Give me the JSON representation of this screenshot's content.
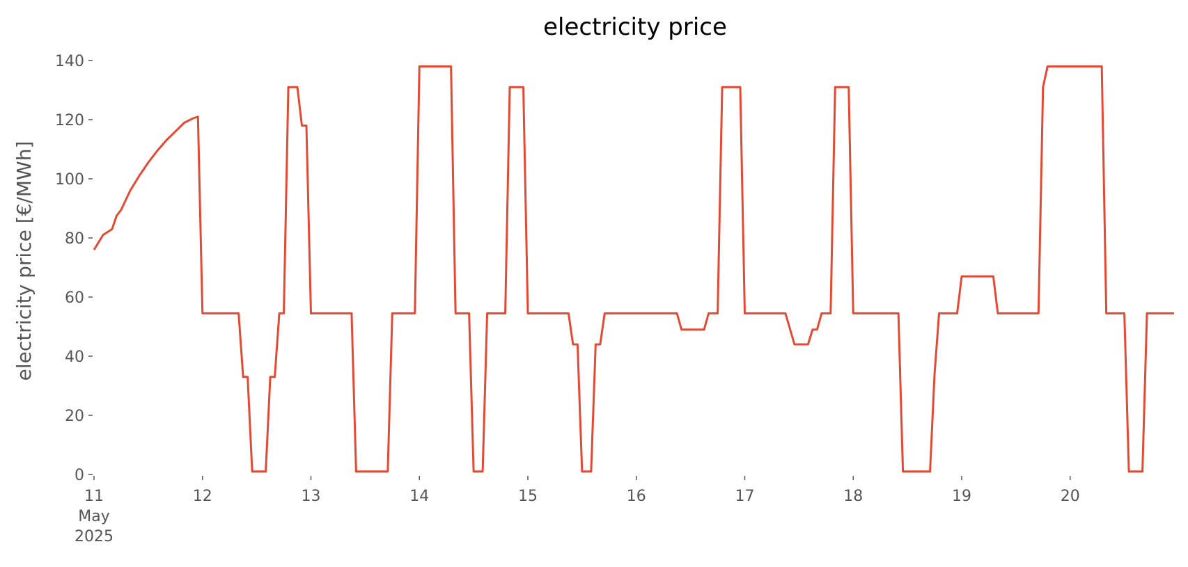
{
  "chart_data": {
    "type": "line",
    "title": "electricity price",
    "ylabel": "electricity price [€/MWh]",
    "x": [
      "2025-05-11T00:00",
      "2025-05-11T01:00",
      "2025-05-11T02:00",
      "2025-05-11T04:00",
      "2025-05-11T05:00",
      "2025-05-11T06:00",
      "2025-05-11T08:00",
      "2025-05-11T10:00",
      "2025-05-11T12:00",
      "2025-05-11T14:00",
      "2025-05-11T16:00",
      "2025-05-11T18:00",
      "2025-05-11T20:00",
      "2025-05-11T22:00",
      "2025-05-11T23:00",
      "2025-05-12T00:00",
      "2025-05-12T08:00",
      "2025-05-12T09:00",
      "2025-05-12T10:00",
      "2025-05-12T11:00",
      "2025-05-12T14:00",
      "2025-05-12T15:00",
      "2025-05-12T16:00",
      "2025-05-12T17:00",
      "2025-05-12T18:00",
      "2025-05-12T19:00",
      "2025-05-12T21:00",
      "2025-05-12T22:00",
      "2025-05-12T23:00",
      "2025-05-13T00:00",
      "2025-05-13T09:00",
      "2025-05-13T10:00",
      "2025-05-13T17:00",
      "2025-05-13T18:00",
      "2025-05-13T23:00",
      "2025-05-14T00:00",
      "2025-05-14T07:00",
      "2025-05-14T08:00",
      "2025-05-14T11:00",
      "2025-05-14T12:00",
      "2025-05-14T14:00",
      "2025-05-14T15:00",
      "2025-05-14T19:00",
      "2025-05-14T20:00",
      "2025-05-14T23:00",
      "2025-05-15T00:00",
      "2025-05-15T09:00",
      "2025-05-15T10:00",
      "2025-05-15T11:00",
      "2025-05-15T12:00",
      "2025-05-15T14:00",
      "2025-05-15T15:00",
      "2025-05-15T16:00",
      "2025-05-15T17:00",
      "2025-05-16T09:00",
      "2025-05-16T10:00",
      "2025-05-16T15:00",
      "2025-05-16T16:00",
      "2025-05-16T18:00",
      "2025-05-16T19:00",
      "2025-05-16T23:00",
      "2025-05-17T00:00",
      "2025-05-17T09:00",
      "2025-05-17T11:00",
      "2025-05-17T14:00",
      "2025-05-17T15:00",
      "2025-05-17T16:00",
      "2025-05-17T17:00",
      "2025-05-17T19:00",
      "2025-05-17T20:00",
      "2025-05-17T23:00",
      "2025-05-18T00:00",
      "2025-05-18T10:00",
      "2025-05-18T11:00",
      "2025-05-18T17:00",
      "2025-05-18T18:00",
      "2025-05-18T19:00",
      "2025-05-18T23:00",
      "2025-05-19T00:00",
      "2025-05-19T07:00",
      "2025-05-19T08:00",
      "2025-05-19T17:00",
      "2025-05-19T18:00",
      "2025-05-19T19:00",
      "2025-05-20T07:00",
      "2025-05-20T08:00",
      "2025-05-20T12:00",
      "2025-05-20T13:00",
      "2025-05-20T16:00",
      "2025-05-20T17:00",
      "2025-05-20T23:00"
    ],
    "series": [
      {
        "name": "electricity price",
        "color": "#e24a33",
        "values": [
          76,
          78.5,
          81,
          83,
          87.5,
          89.5,
          96,
          101,
          105.5,
          109.5,
          113,
          116,
          119,
          120.5,
          121,
          54.5,
          54.5,
          33,
          33,
          1,
          1,
          33,
          33,
          54.5,
          54.5,
          131,
          131,
          118,
          118,
          54.5,
          54.5,
          1,
          1,
          54.5,
          54.5,
          138,
          138,
          54.5,
          54.5,
          1,
          1,
          54.5,
          54.5,
          131,
          131,
          54.5,
          54.5,
          44,
          44,
          1,
          1,
          44,
          44,
          54.5,
          54.5,
          49,
          49,
          54.5,
          54.5,
          131,
          131,
          54.5,
          54.5,
          44,
          44,
          49,
          49,
          54.5,
          54.5,
          131,
          131,
          54.5,
          54.5,
          1,
          1,
          34,
          54.5,
          54.5,
          67,
          67,
          54.5,
          54.5,
          131,
          138,
          138,
          54.5,
          54.5,
          1,
          1,
          54.5,
          54.5
        ]
      }
    ],
    "xlim": [
      "2025-05-11T00:00",
      "2025-05-20T23:00"
    ],
    "xticks": [
      {
        "value": "2025-05-11T00:00",
        "label": "11\nMay\n2025"
      },
      {
        "value": "2025-05-12T00:00",
        "label": "12"
      },
      {
        "value": "2025-05-13T00:00",
        "label": "13"
      },
      {
        "value": "2025-05-14T00:00",
        "label": "14"
      },
      {
        "value": "2025-05-15T00:00",
        "label": "15"
      },
      {
        "value": "2025-05-16T00:00",
        "label": "16"
      },
      {
        "value": "2025-05-17T00:00",
        "label": "17"
      },
      {
        "value": "2025-05-18T00:00",
        "label": "18"
      },
      {
        "value": "2025-05-19T00:00",
        "label": "19"
      },
      {
        "value": "2025-05-20T00:00",
        "label": "20"
      }
    ],
    "ylim": [
      0,
      140
    ],
    "yticks": [
      0,
      20,
      40,
      60,
      80,
      100,
      120,
      140
    ],
    "grid": false
  }
}
